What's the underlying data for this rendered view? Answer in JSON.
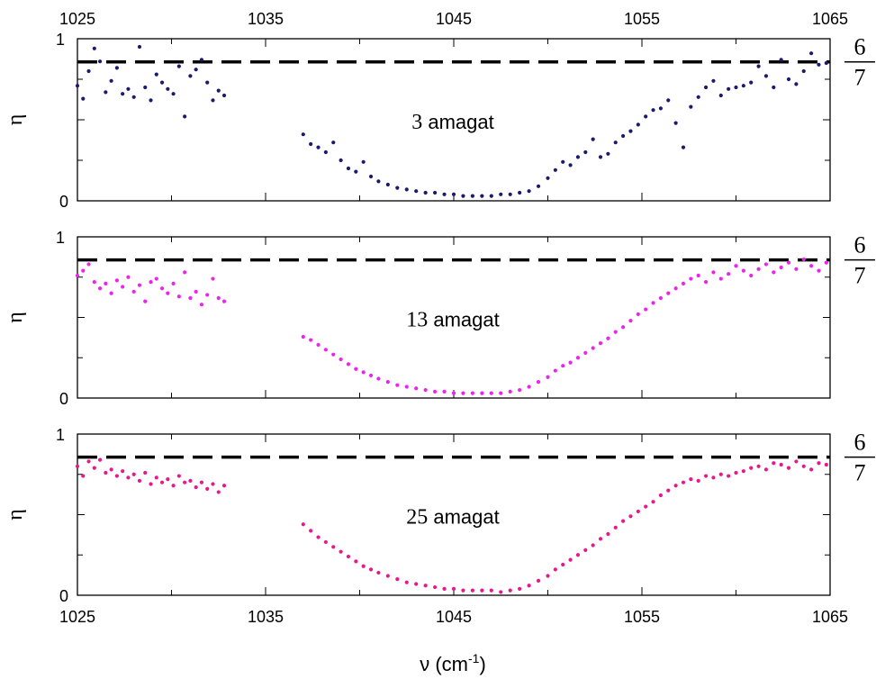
{
  "chart_data": [
    {
      "type": "scatter",
      "annotation_value": "3",
      "annotation_unit": " amagat",
      "ylabel": "η",
      "xlim": [
        1025,
        1065
      ],
      "ylim": [
        0,
        1
      ],
      "x_ticks_top": [
        "1025",
        "1035",
        "1045",
        "1055",
        "1065"
      ],
      "y_ticks": [
        "0",
        "1"
      ],
      "reference_line": {
        "y": 0.857,
        "style": "dashed",
        "label_num": "6",
        "label_den": "7"
      },
      "marker_color": "#1b1b6e",
      "series": [
        {
          "x": [
            1025.0,
            1025.3,
            1025.6,
            1025.9,
            1026.2,
            1026.5,
            1026.8,
            1027.1,
            1027.4,
            1027.7,
            1028.0,
            1028.3,
            1028.6,
            1028.9,
            1029.2,
            1029.5,
            1029.8,
            1030.1,
            1030.4,
            1030.7,
            1031.0,
            1031.3,
            1031.6,
            1031.9,
            1032.2,
            1032.5,
            1032.8,
            1037.0,
            1037.4,
            1037.8,
            1038.2,
            1038.6,
            1039.0,
            1039.4,
            1039.8,
            1040.2,
            1040.6,
            1041.0,
            1041.5,
            1042.0,
            1042.5,
            1043.0,
            1043.5,
            1044.0,
            1044.5,
            1045.0,
            1045.5,
            1046.0,
            1046.5,
            1047.0,
            1047.5,
            1048.0,
            1048.5,
            1049.0,
            1049.5,
            1050.0,
            1050.4,
            1050.8,
            1051.2,
            1051.6,
            1052.0,
            1052.4,
            1052.8,
            1053.2,
            1053.6,
            1054.0,
            1054.4,
            1054.8,
            1055.2,
            1055.6,
            1056.0,
            1056.4,
            1056.8,
            1057.2,
            1057.6,
            1058.0,
            1058.4,
            1058.8,
            1059.2,
            1059.6,
            1060.0,
            1060.4,
            1060.8,
            1061.2,
            1061.6,
            1062.0,
            1062.4,
            1062.8,
            1063.2,
            1063.6,
            1064.0,
            1064.4,
            1064.8
          ],
          "y": [
            0.71,
            0.63,
            0.8,
            0.94,
            0.86,
            0.67,
            0.74,
            0.82,
            0.66,
            0.69,
            0.64,
            0.95,
            0.7,
            0.62,
            0.78,
            0.73,
            0.69,
            0.66,
            0.83,
            0.52,
            0.77,
            0.81,
            0.87,
            0.73,
            0.62,
            0.68,
            0.65,
            0.41,
            0.35,
            0.33,
            0.3,
            0.36,
            0.25,
            0.2,
            0.18,
            0.24,
            0.15,
            0.12,
            0.1,
            0.08,
            0.07,
            0.06,
            0.05,
            0.05,
            0.04,
            0.04,
            0.03,
            0.03,
            0.03,
            0.03,
            0.04,
            0.04,
            0.05,
            0.06,
            0.09,
            0.14,
            0.19,
            0.24,
            0.22,
            0.27,
            0.3,
            0.38,
            0.27,
            0.29,
            0.36,
            0.4,
            0.43,
            0.47,
            0.52,
            0.56,
            0.57,
            0.62,
            0.48,
            0.33,
            0.58,
            0.64,
            0.7,
            0.74,
            0.65,
            0.69,
            0.7,
            0.71,
            0.73,
            0.83,
            0.77,
            0.7,
            0.87,
            0.75,
            0.72,
            0.8,
            0.91,
            0.84,
            0.85
          ]
        }
      ]
    },
    {
      "type": "scatter",
      "annotation_value": "13",
      "annotation_unit": " amagat",
      "ylabel": "η",
      "xlim": [
        1025,
        1065
      ],
      "ylim": [
        0,
        1
      ],
      "y_ticks": [
        "0",
        "1"
      ],
      "reference_line": {
        "y": 0.857,
        "style": "dashed",
        "label_num": "6",
        "label_den": "7"
      },
      "marker_color": "#ee22ee",
      "series": [
        {
          "x": [
            1025.0,
            1025.3,
            1025.6,
            1025.9,
            1026.2,
            1026.5,
            1026.8,
            1027.1,
            1027.4,
            1027.7,
            1028.0,
            1028.3,
            1028.6,
            1028.9,
            1029.2,
            1029.5,
            1029.8,
            1030.1,
            1030.4,
            1030.7,
            1031.0,
            1031.3,
            1031.6,
            1031.9,
            1032.2,
            1032.5,
            1032.8,
            1037.0,
            1037.4,
            1037.8,
            1038.2,
            1038.6,
            1039.0,
            1039.4,
            1039.8,
            1040.2,
            1040.6,
            1041.0,
            1041.5,
            1042.0,
            1042.5,
            1043.0,
            1043.5,
            1044.0,
            1044.5,
            1045.0,
            1045.5,
            1046.0,
            1046.5,
            1047.0,
            1047.5,
            1048.0,
            1048.5,
            1049.0,
            1049.5,
            1050.0,
            1050.4,
            1050.8,
            1051.2,
            1051.6,
            1052.0,
            1052.4,
            1052.8,
            1053.2,
            1053.6,
            1054.0,
            1054.4,
            1054.8,
            1055.2,
            1055.6,
            1056.0,
            1056.4,
            1056.8,
            1057.2,
            1057.6,
            1058.0,
            1058.4,
            1058.8,
            1059.2,
            1059.6,
            1060.0,
            1060.4,
            1060.8,
            1061.2,
            1061.6,
            1062.0,
            1062.4,
            1062.8,
            1063.2,
            1063.6,
            1064.0,
            1064.4,
            1064.8
          ],
          "y": [
            0.76,
            0.79,
            0.83,
            0.72,
            0.68,
            0.71,
            0.65,
            0.73,
            0.69,
            0.75,
            0.66,
            0.7,
            0.6,
            0.72,
            0.74,
            0.68,
            0.65,
            0.71,
            0.63,
            0.78,
            0.62,
            0.66,
            0.58,
            0.64,
            0.74,
            0.62,
            0.6,
            0.38,
            0.36,
            0.33,
            0.3,
            0.27,
            0.24,
            0.21,
            0.18,
            0.16,
            0.14,
            0.12,
            0.1,
            0.08,
            0.07,
            0.06,
            0.05,
            0.04,
            0.04,
            0.03,
            0.03,
            0.03,
            0.03,
            0.03,
            0.03,
            0.04,
            0.05,
            0.07,
            0.1,
            0.13,
            0.17,
            0.2,
            0.22,
            0.25,
            0.28,
            0.31,
            0.34,
            0.37,
            0.41,
            0.44,
            0.48,
            0.52,
            0.55,
            0.59,
            0.62,
            0.65,
            0.68,
            0.71,
            0.74,
            0.76,
            0.72,
            0.78,
            0.74,
            0.77,
            0.82,
            0.79,
            0.76,
            0.8,
            0.83,
            0.78,
            0.81,
            0.84,
            0.8,
            0.86,
            0.82,
            0.79,
            0.84
          ]
        }
      ]
    },
    {
      "type": "scatter",
      "annotation_value": "25",
      "annotation_unit": " amagat",
      "ylabel": "η",
      "xlabel_main": "ν (cm",
      "xlabel_sup": "-1",
      "xlabel_end": ")",
      "xlim": [
        1025,
        1065
      ],
      "ylim": [
        0,
        1
      ],
      "x_ticks_bottom": [
        "1025",
        "1035",
        "1045",
        "1055",
        "1065"
      ],
      "y_ticks": [
        "0",
        "1"
      ],
      "reference_line": {
        "y": 0.857,
        "style": "dashed",
        "label_num": "6",
        "label_den": "7"
      },
      "marker_color": "#e8188c",
      "series": [
        {
          "x": [
            1025.0,
            1025.3,
            1025.6,
            1025.9,
            1026.2,
            1026.5,
            1026.8,
            1027.1,
            1027.4,
            1027.7,
            1028.0,
            1028.3,
            1028.6,
            1028.9,
            1029.2,
            1029.5,
            1029.8,
            1030.1,
            1030.4,
            1030.7,
            1031.0,
            1031.3,
            1031.6,
            1031.9,
            1032.2,
            1032.5,
            1032.8,
            1037.0,
            1037.4,
            1037.8,
            1038.2,
            1038.6,
            1039.0,
            1039.4,
            1039.8,
            1040.2,
            1040.6,
            1041.0,
            1041.5,
            1042.0,
            1042.5,
            1043.0,
            1043.5,
            1044.0,
            1044.5,
            1045.0,
            1045.5,
            1046.0,
            1046.5,
            1047.0,
            1047.5,
            1048.0,
            1048.5,
            1049.0,
            1049.5,
            1050.0,
            1050.4,
            1050.8,
            1051.2,
            1051.6,
            1052.0,
            1052.4,
            1052.8,
            1053.2,
            1053.6,
            1054.0,
            1054.4,
            1054.8,
            1055.2,
            1055.6,
            1056.0,
            1056.4,
            1056.8,
            1057.2,
            1057.6,
            1058.0,
            1058.4,
            1058.8,
            1059.2,
            1059.6,
            1060.0,
            1060.4,
            1060.8,
            1061.2,
            1061.6,
            1062.0,
            1062.4,
            1062.8,
            1063.2,
            1063.6,
            1064.0,
            1064.4,
            1064.8
          ],
          "y": [
            0.8,
            0.74,
            0.83,
            0.79,
            0.84,
            0.76,
            0.78,
            0.74,
            0.77,
            0.73,
            0.75,
            0.71,
            0.76,
            0.69,
            0.73,
            0.7,
            0.72,
            0.68,
            0.74,
            0.7,
            0.71,
            0.67,
            0.7,
            0.66,
            0.69,
            0.64,
            0.68,
            0.44,
            0.4,
            0.36,
            0.33,
            0.3,
            0.27,
            0.24,
            0.21,
            0.18,
            0.16,
            0.14,
            0.12,
            0.1,
            0.08,
            0.07,
            0.06,
            0.05,
            0.04,
            0.04,
            0.03,
            0.03,
            0.03,
            0.03,
            0.02,
            0.03,
            0.04,
            0.06,
            0.09,
            0.12,
            0.16,
            0.19,
            0.22,
            0.25,
            0.28,
            0.31,
            0.35,
            0.38,
            0.42,
            0.46,
            0.49,
            0.52,
            0.55,
            0.58,
            0.62,
            0.65,
            0.68,
            0.7,
            0.72,
            0.71,
            0.74,
            0.73,
            0.75,
            0.74,
            0.76,
            0.77,
            0.79,
            0.8,
            0.78,
            0.82,
            0.81,
            0.79,
            0.83,
            0.8,
            0.78,
            0.82,
            0.81
          ]
        }
      ]
    }
  ]
}
